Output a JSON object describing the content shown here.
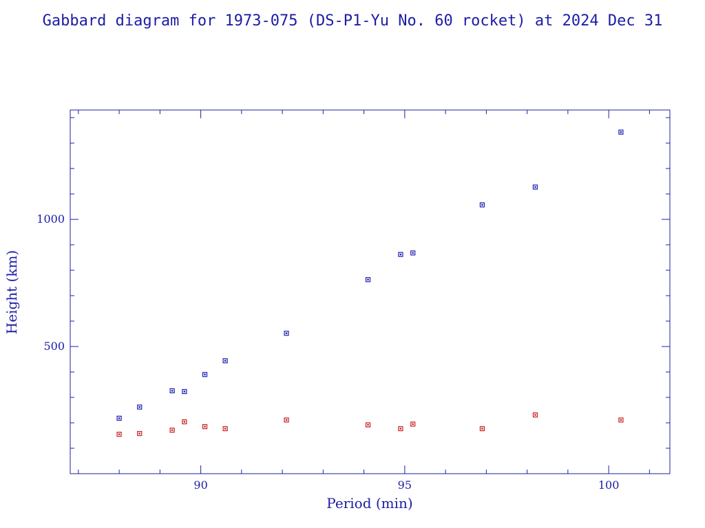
{
  "chart_data": {
    "type": "scatter",
    "title": "Gabbard diagram for 1973-075 (DS-P1-Yu No. 60 rocket) at 2024 Dec 31",
    "xlabel": "Period (min)",
    "ylabel": "Height (km)",
    "xlim": [
      86.8,
      101.5
    ],
    "ylim": [
      0,
      1430
    ],
    "x_ticks": [
      90,
      95,
      100
    ],
    "y_ticks": [
      500,
      1000
    ],
    "axis_color": "#1c1ca6",
    "series": [
      {
        "color": "#1c1cb4",
        "points": [
          {
            "x": 88.0,
            "y": 218
          },
          {
            "x": 88.5,
            "y": 262
          },
          {
            "x": 89.3,
            "y": 326
          },
          {
            "x": 89.6,
            "y": 323
          },
          {
            "x": 90.1,
            "y": 390
          },
          {
            "x": 90.6,
            "y": 444
          },
          {
            "x": 92.1,
            "y": 552
          },
          {
            "x": 94.1,
            "y": 763
          },
          {
            "x": 94.9,
            "y": 862
          },
          {
            "x": 95.2,
            "y": 868
          },
          {
            "x": 96.9,
            "y": 1057
          },
          {
            "x": 98.2,
            "y": 1127
          },
          {
            "x": 100.3,
            "y": 1343
          }
        ]
      },
      {
        "color": "#c81e1e",
        "points": [
          {
            "x": 88.0,
            "y": 155
          },
          {
            "x": 88.5,
            "y": 158
          },
          {
            "x": 89.3,
            "y": 171
          },
          {
            "x": 89.6,
            "y": 204
          },
          {
            "x": 90.1,
            "y": 185
          },
          {
            "x": 90.6,
            "y": 177
          },
          {
            "x": 92.1,
            "y": 211
          },
          {
            "x": 94.1,
            "y": 192
          },
          {
            "x": 94.9,
            "y": 177
          },
          {
            "x": 95.2,
            "y": 195
          },
          {
            "x": 96.9,
            "y": 177
          },
          {
            "x": 98.2,
            "y": 231
          },
          {
            "x": 100.3,
            "y": 211
          }
        ]
      }
    ]
  }
}
